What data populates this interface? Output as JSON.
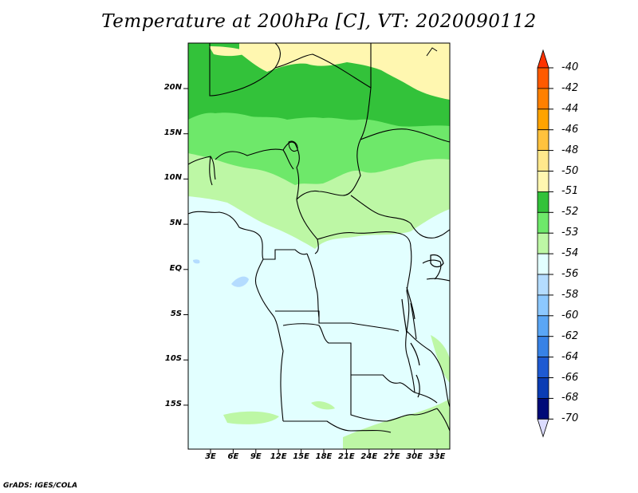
{
  "title": "Temperature at 200hPa [C], VT: 2020090112",
  "credit": "GrADS: IGES/COLA",
  "map": {
    "lat_labels": [
      "20N",
      "15N",
      "10N",
      "5N",
      "EQ",
      "5S",
      "10S",
      "15S"
    ],
    "lon_labels": [
      "3E",
      "6E",
      "9E",
      "12E",
      "15E",
      "18E",
      "21E",
      "24E",
      "27E",
      "30E",
      "33E"
    ]
  },
  "colorbar": {
    "labels": [
      "-40",
      "-42",
      "-44",
      "-46",
      "-48",
      "-50",
      "-51",
      "-52",
      "-53",
      "-54",
      "-56",
      "-58",
      "-60",
      "-62",
      "-64",
      "-66",
      "-68",
      "-70"
    ],
    "colors": [
      "#ff3300",
      "#ff5a00",
      "#ff8000",
      "#ffa300",
      "#ffc23e",
      "#ffe88c",
      "#fff7b0",
      "#33c23a",
      "#6ee86a",
      "#bdf7a5",
      "#e2ffff",
      "#b4dcff",
      "#8cc8ff",
      "#5aa6f5",
      "#3782e6",
      "#1e5ad2",
      "#0a3cb4",
      "#000a78",
      "#dcdcff"
    ]
  }
}
